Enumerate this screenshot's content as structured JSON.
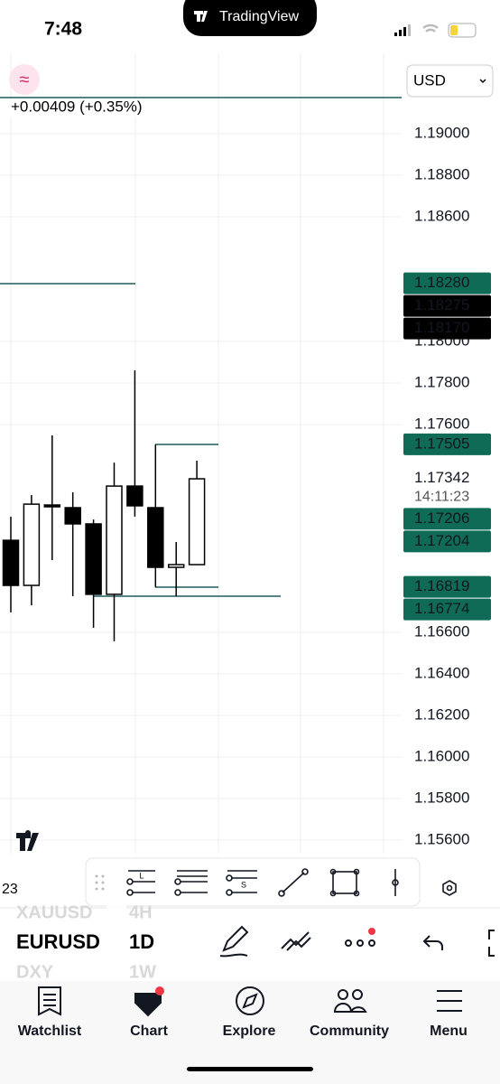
{
  "status_bar": {
    "time": "7:48",
    "app": "TradingView"
  },
  "header": {
    "currency": "USD",
    "change": "+0.00409 (+0.35%)"
  },
  "chart_data": {
    "type": "candlestick",
    "categories": [
      null,
      null,
      null,
      null,
      null,
      null,
      null,
      null,
      null,
      null
    ],
    "open": [
      1.17043,
      1.16826,
      1.17213,
      1.172,
      1.17122,
      1.16783,
      1.17304,
      1.172,
      1.16913,
      1.16926
    ],
    "high": [
      1.17157,
      1.17261,
      1.17548,
      1.17274,
      1.17143,
      1.17417,
      1.17861,
      1.17504,
      1.17035,
      1.17426
    ],
    "low": [
      1.16696,
      1.1673,
      1.16948,
      1.16774,
      1.16622,
      1.16557,
      1.17157,
      1.16817,
      1.16774,
      1.16926
    ],
    "close": [
      1.16826,
      1.17217,
      1.17209,
      1.17122,
      1.16783,
      1.17304,
      1.17209,
      1.16913,
      1.16926,
      1.17339
    ],
    "up_color": "#ffffff",
    "down_color": "#000000",
    "ylim": [
      1.15535,
      1.19339
    ],
    "yticks": [
      {
        "value": 1.19,
        "label": "1.19000"
      },
      {
        "value": 1.188,
        "label": "1.18800"
      },
      {
        "value": 1.186,
        "label": "1.18600"
      },
      {
        "value": 1.18,
        "label": "1.18000"
      },
      {
        "value": 1.178,
        "label": "1.17800"
      },
      {
        "value": 1.176,
        "label": "1.17600"
      },
      {
        "value": 1.166,
        "label": "1.16600"
      },
      {
        "value": 1.164,
        "label": "1.16400"
      },
      {
        "value": 1.162,
        "label": "1.16200"
      },
      {
        "value": 1.16,
        "label": "1.16000"
      },
      {
        "value": 1.158,
        "label": "1.15800"
      },
      {
        "value": 1.156,
        "label": "1.15600"
      }
    ],
    "grid": true,
    "price_tags": [
      {
        "value": 1.1828,
        "label": "1.18280",
        "color": "#0f6b56"
      },
      {
        "value": 1.18275,
        "label": "1.18275",
        "color": "#000000"
      },
      {
        "value": 1.1817,
        "label": "1.18170",
        "color": "#000000"
      },
      {
        "value": 1.17505,
        "label": "1.17505",
        "color": "#0f6b56"
      },
      {
        "value": 1.17342,
        "label": "1.17342",
        "color": "#ffffff",
        "countdown": "14:11:23"
      },
      {
        "value": 1.17206,
        "label": "1.17206",
        "color": "#0f6b56"
      },
      {
        "value": 1.17204,
        "label": "1.17204",
        "color": "#0f6b56"
      },
      {
        "value": 1.16819,
        "label": "1.16819",
        "color": "#0f6b56"
      },
      {
        "value": 1.16774,
        "label": "1.16774",
        "color": "#0f6b56"
      }
    ],
    "x_label": "23"
  },
  "toolbar": {
    "tools": [
      "L",
      "S"
    ]
  },
  "symbols": {
    "previous": "XAUUSD",
    "current": "EURUSD",
    "next": "DXY"
  },
  "intervals": {
    "previous": "4H",
    "current": "1D",
    "next": "1W"
  },
  "bottom_nav": [
    "Watchlist",
    "Chart",
    "Explore",
    "Community",
    "Menu"
  ]
}
